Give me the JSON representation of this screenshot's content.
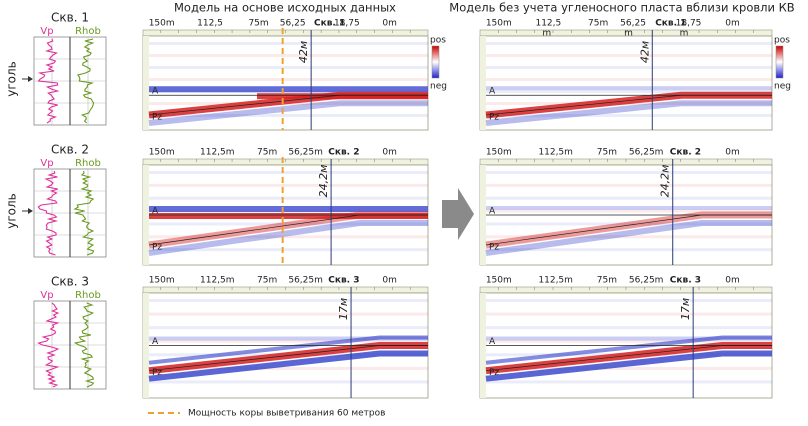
{
  "titles": {
    "original_model": "Модель на основе исходных данных",
    "modified_model": "Модель без учета угленосного пласта вблизи кровли КВ"
  },
  "wells": [
    {
      "name": "Скв. 1",
      "vp_label": "Vp",
      "rhob_label": "Rhob",
      "coal_label": "уголь"
    },
    {
      "name": "Скв. 2",
      "vp_label": "Vp",
      "rhob_label": "Rhob",
      "coal_label": "уголь"
    },
    {
      "name": "Скв. 3",
      "vp_label": "Vp",
      "rhob_label": "Rhob"
    }
  ],
  "rows": [
    {
      "original": {
        "axis_labels": [
          "150m",
          "112,5",
          "75m",
          "56,25",
          "Скв. 1",
          "18,75",
          "0m"
        ],
        "thickness": "42м",
        "horizons": [
          "A",
          "Pz"
        ],
        "colorbar": [
          "pos",
          "neg"
        ]
      },
      "modified": {
        "axis_labels": [
          "150m",
          "112,5",
          "75m",
          "56,25",
          "Скв. 1",
          "18,75",
          "0m"
        ],
        "unit_marks": [
          "m",
          "m",
          "m"
        ],
        "thickness": "42м",
        "horizons": [
          "A",
          "Pz"
        ],
        "colorbar": [
          "pos",
          "neg"
        ]
      }
    },
    {
      "original": {
        "axis_labels": [
          "150m",
          "112,5m",
          "75m",
          "56,25m",
          "Скв. 2",
          "0m"
        ],
        "thickness": "24,2м",
        "horizons": [
          "A",
          "Pz"
        ]
      },
      "modified": {
        "axis_labels": [
          "150m",
          "112,5m",
          "75m",
          "56,25m",
          "Скв. 2",
          "0m"
        ],
        "thickness": "24,2м",
        "horizons": [
          "A",
          "Pz"
        ]
      }
    },
    {
      "original": {
        "axis_labels": [
          "150m",
          "112,5m",
          "75m",
          "56,25m",
          "Скв. 3",
          "0m"
        ],
        "thickness": "17м",
        "horizons": [
          "A",
          "Pz"
        ]
      },
      "modified": {
        "axis_labels": [
          "150m",
          "112,5m",
          "75m",
          "56,25m",
          "Скв. 3",
          "0m"
        ],
        "thickness": "17м",
        "horizons": [
          "A",
          "Pz"
        ]
      }
    }
  ],
  "legend": "Мощность коры выветривания 60 метров"
}
